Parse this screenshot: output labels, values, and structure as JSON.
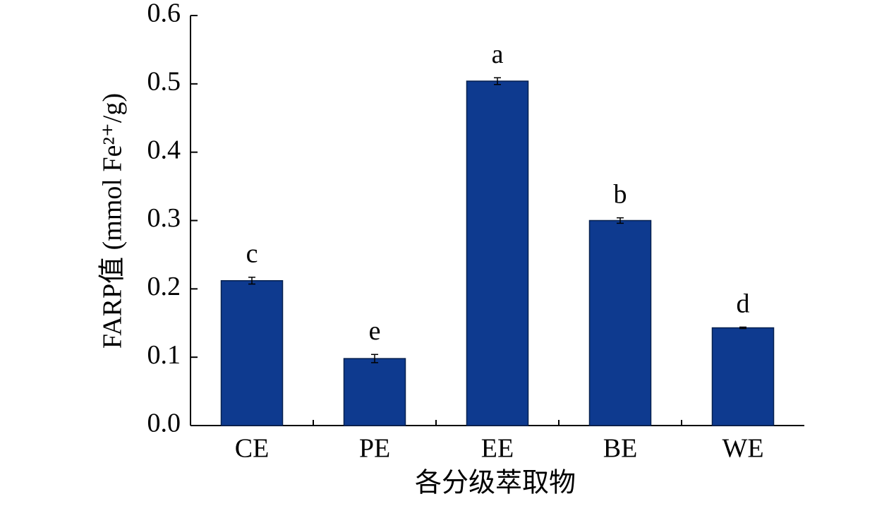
{
  "chart_data": {
    "type": "bar",
    "y_label": "FARP值 (mmol Fe²⁺/g)",
    "x_label": "各分级萃取物",
    "categories": [
      "CE",
      "PE",
      "EE",
      "BE",
      "WE"
    ],
    "values": [
      0.212,
      0.098,
      0.504,
      0.3,
      0.143
    ],
    "errors": [
      0.005,
      0.006,
      0.005,
      0.004,
      0.001
    ],
    "annotations": [
      "c",
      "e",
      "a",
      "b",
      "d"
    ],
    "color": "#0e3a8f",
    "ylim": [
      0,
      0.6
    ],
    "yticks": [
      {
        "value": 0,
        "label": "0.0"
      },
      0.1,
      0.2,
      0.3,
      0.4,
      0.5,
      0.6
    ]
  }
}
